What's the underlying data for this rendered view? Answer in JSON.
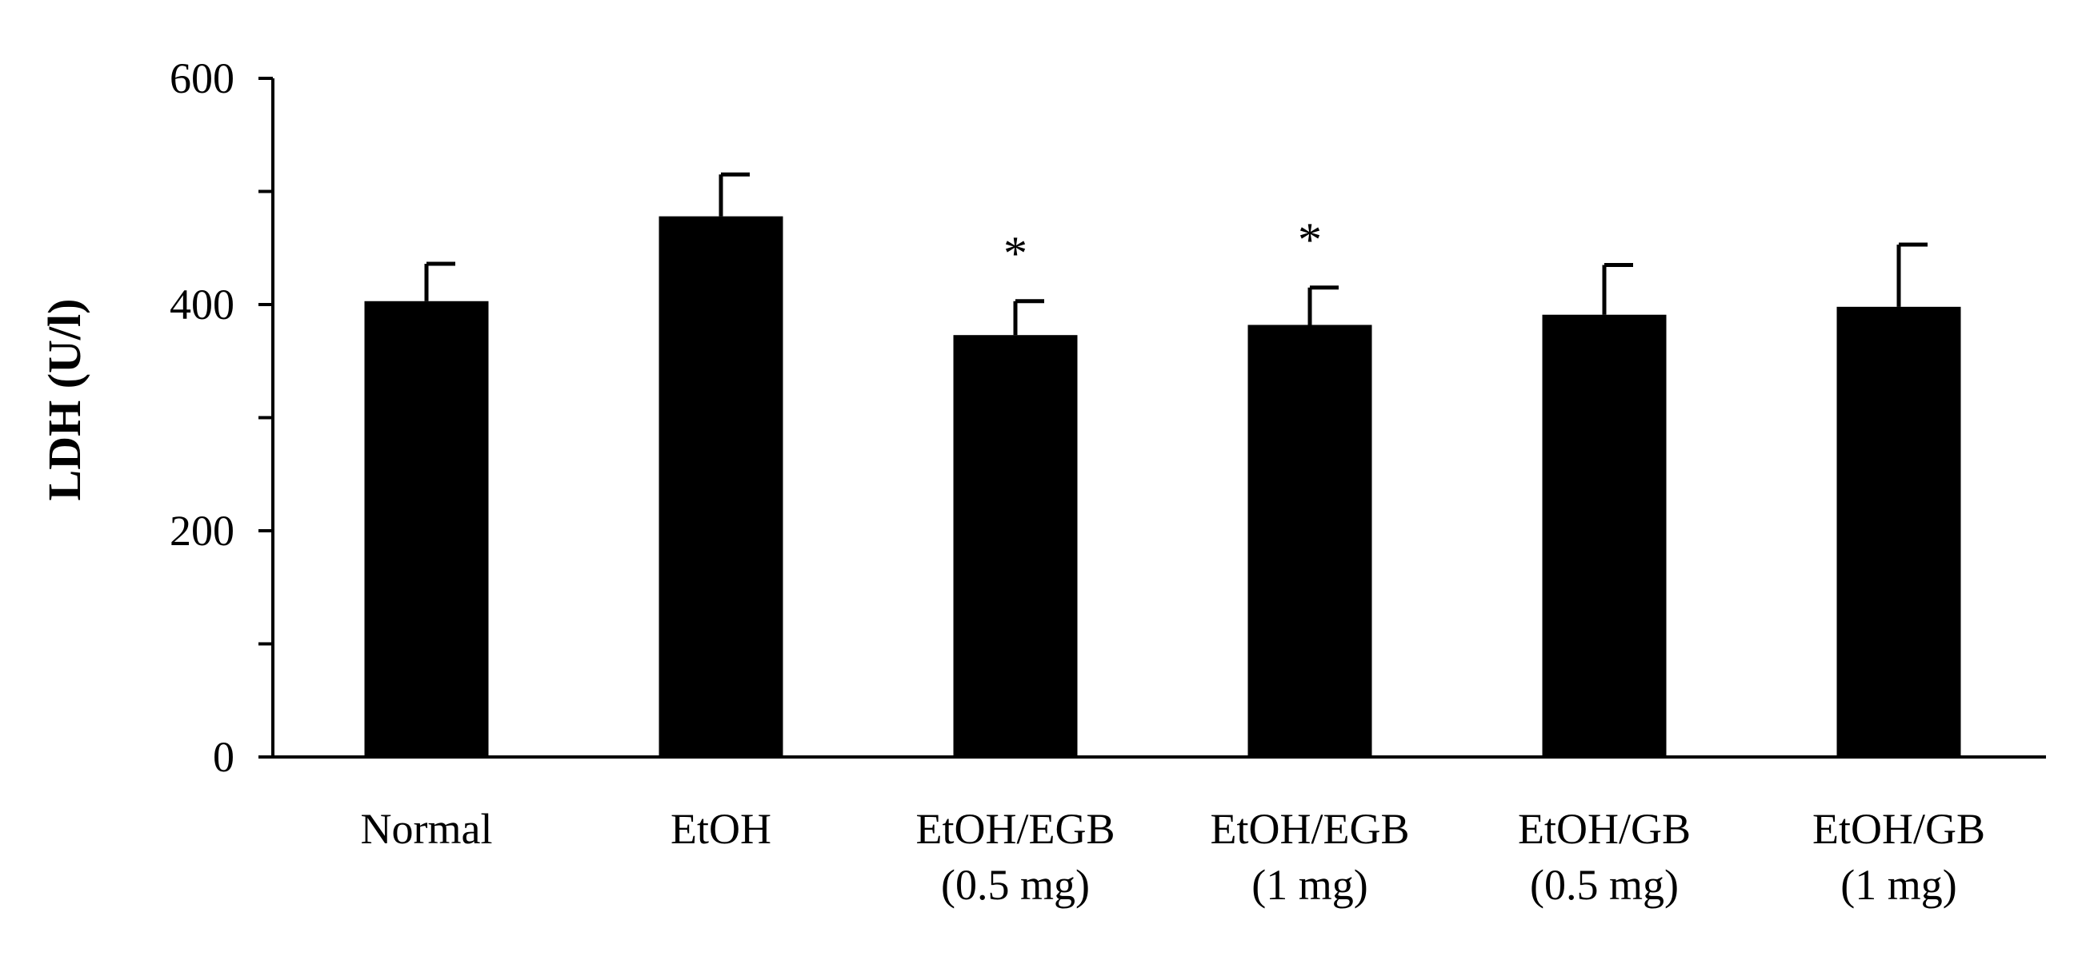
{
  "chart_data": {
    "type": "bar",
    "categories": [
      [
        "Normal"
      ],
      [
        "EtOH"
      ],
      [
        "EtOH/EGB",
        "(0.5 mg)"
      ],
      [
        "EtOH/EGB",
        "(1 mg)"
      ],
      [
        "EtOH/GB",
        "(0.5 mg)"
      ],
      [
        "EtOH/GB",
        "(1 mg)"
      ]
    ],
    "values": [
      403,
      478,
      373,
      382,
      391,
      398
    ],
    "error_upper": [
      33,
      37,
      30,
      33,
      44,
      55
    ],
    "significance": [
      "",
      "",
      "*",
      "*",
      "",
      ""
    ],
    "ylabel": "LDH (U/l)",
    "xlabel": "",
    "title": "",
    "ylim": [
      0,
      600
    ],
    "yticks": [
      0,
      200,
      400,
      600
    ],
    "y_minor_ticks": [
      100,
      300,
      500
    ],
    "grid": false,
    "legend": "none",
    "bar_color": "#000000",
    "axis_color": "#000000"
  }
}
